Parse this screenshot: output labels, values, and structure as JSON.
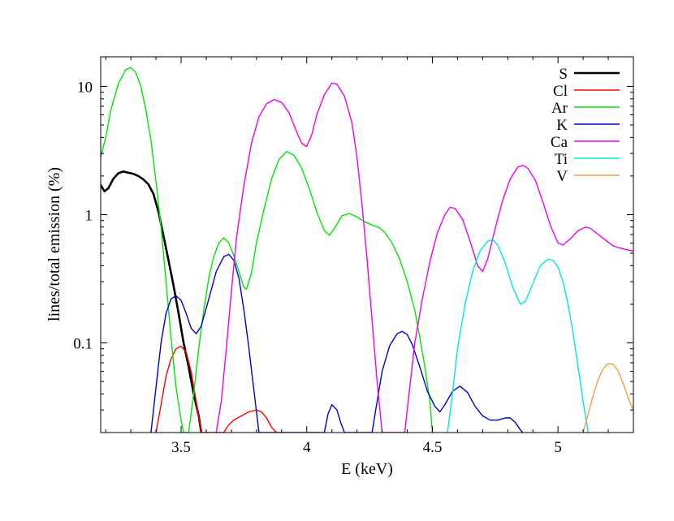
{
  "chart_data": {
    "type": "line",
    "xlabel": "E (keV)",
    "ylabel": "lines/total emission (%)",
    "xlim": [
      3.18,
      5.3
    ],
    "ylim": [
      0.02,
      17
    ],
    "yscale": "log",
    "x_ticks": [
      3.5,
      4,
      4.5,
      5
    ],
    "x_tick_labels": [
      "3.5",
      "4",
      "4.5",
      "5"
    ],
    "y_ticks": [
      0.1,
      1,
      10
    ],
    "y_tick_labels": [
      "0.1",
      "1",
      "10"
    ],
    "grid": false,
    "legend_position": "top-right",
    "series": [
      {
        "name": "S",
        "color": "#000000",
        "width": 2.6,
        "points": [
          [
            3.18,
            1.7
          ],
          [
            3.195,
            1.52
          ],
          [
            3.21,
            1.6
          ],
          [
            3.23,
            1.9
          ],
          [
            3.25,
            2.1
          ],
          [
            3.27,
            2.17
          ],
          [
            3.29,
            2.12
          ],
          [
            3.31,
            2.08
          ],
          [
            3.33,
            2.0
          ],
          [
            3.35,
            1.88
          ],
          [
            3.37,
            1.72
          ],
          [
            3.39,
            1.45
          ],
          [
            3.41,
            1.05
          ],
          [
            3.43,
            0.68
          ],
          [
            3.45,
            0.44
          ],
          [
            3.47,
            0.28
          ],
          [
            3.49,
            0.17
          ],
          [
            3.51,
            0.1
          ],
          [
            3.53,
            0.065
          ],
          [
            3.55,
            0.04
          ],
          [
            3.57,
            0.027
          ],
          [
            3.58,
            0.02
          ]
        ]
      },
      {
        "name": "Cl",
        "color": "#ff0000",
        "width": 1.4,
        "points": [
          [
            3.4,
            0.02
          ],
          [
            3.42,
            0.033
          ],
          [
            3.44,
            0.055
          ],
          [
            3.46,
            0.075
          ],
          [
            3.48,
            0.09
          ],
          [
            3.5,
            0.094
          ],
          [
            3.52,
            0.085
          ],
          [
            3.54,
            0.06
          ],
          [
            3.56,
            0.035
          ],
          [
            3.58,
            0.02
          ],
          [
            3.67,
            0.02
          ],
          [
            3.69,
            0.023
          ],
          [
            3.71,
            0.025
          ],
          [
            3.74,
            0.027
          ],
          [
            3.77,
            0.029
          ],
          [
            3.8,
            0.03
          ],
          [
            3.82,
            0.029
          ],
          [
            3.84,
            0.026
          ],
          [
            3.86,
            0.022
          ],
          [
            3.88,
            0.02
          ]
        ]
      },
      {
        "name": "Ar",
        "color": "#00e600",
        "width": 1.4,
        "points": [
          [
            3.18,
            2.8
          ],
          [
            3.2,
            4.0
          ],
          [
            3.22,
            6.5
          ],
          [
            3.25,
            10.5
          ],
          [
            3.28,
            13.5
          ],
          [
            3.3,
            14.0
          ],
          [
            3.32,
            12.8
          ],
          [
            3.34,
            10.0
          ],
          [
            3.36,
            6.5
          ],
          [
            3.38,
            3.8
          ],
          [
            3.4,
            1.8
          ],
          [
            3.42,
            0.8
          ],
          [
            3.44,
            0.3
          ],
          [
            3.46,
            0.11
          ],
          [
            3.48,
            0.045
          ],
          [
            3.5,
            0.025
          ],
          [
            3.51,
            0.02
          ],
          [
            3.53,
            0.02
          ],
          [
            3.55,
            0.04
          ],
          [
            3.57,
            0.09
          ],
          [
            3.59,
            0.18
          ],
          [
            3.61,
            0.32
          ],
          [
            3.63,
            0.47
          ],
          [
            3.65,
            0.6
          ],
          [
            3.67,
            0.66
          ],
          [
            3.69,
            0.6
          ],
          [
            3.71,
            0.48
          ],
          [
            3.73,
            0.36
          ],
          [
            3.75,
            0.27
          ],
          [
            3.76,
            0.262
          ],
          [
            3.78,
            0.35
          ],
          [
            3.8,
            0.6
          ],
          [
            3.83,
            1.1
          ],
          [
            3.86,
            1.9
          ],
          [
            3.89,
            2.7
          ],
          [
            3.92,
            3.1
          ],
          [
            3.95,
            2.9
          ],
          [
            3.98,
            2.3
          ],
          [
            4.01,
            1.6
          ],
          [
            4.04,
            1.05
          ],
          [
            4.07,
            0.75
          ],
          [
            4.09,
            0.69
          ],
          [
            4.11,
            0.78
          ],
          [
            4.14,
            0.98
          ],
          [
            4.17,
            1.02
          ],
          [
            4.2,
            0.96
          ],
          [
            4.23,
            0.88
          ],
          [
            4.26,
            0.83
          ],
          [
            4.29,
            0.79
          ],
          [
            4.31,
            0.73
          ],
          [
            4.34,
            0.6
          ],
          [
            4.37,
            0.45
          ],
          [
            4.4,
            0.3
          ],
          [
            4.43,
            0.18
          ],
          [
            4.45,
            0.11
          ],
          [
            4.47,
            0.065
          ],
          [
            4.49,
            0.035
          ],
          [
            4.5,
            0.02
          ]
        ]
      },
      {
        "name": "K",
        "color": "#0000cc",
        "width": 1.4,
        "points": [
          [
            3.38,
            0.02
          ],
          [
            3.4,
            0.045
          ],
          [
            3.42,
            0.1
          ],
          [
            3.44,
            0.17
          ],
          [
            3.46,
            0.22
          ],
          [
            3.48,
            0.233
          ],
          [
            3.5,
            0.215
          ],
          [
            3.52,
            0.17
          ],
          [
            3.54,
            0.13
          ],
          [
            3.56,
            0.118
          ],
          [
            3.58,
            0.135
          ],
          [
            3.61,
            0.22
          ],
          [
            3.64,
            0.36
          ],
          [
            3.67,
            0.47
          ],
          [
            3.69,
            0.49
          ],
          [
            3.71,
            0.44
          ],
          [
            3.73,
            0.32
          ],
          [
            3.75,
            0.18
          ],
          [
            3.77,
            0.09
          ],
          [
            3.79,
            0.042
          ],
          [
            3.81,
            0.02
          ],
          [
            4.07,
            0.02
          ],
          [
            4.085,
            0.028
          ],
          [
            4.1,
            0.033
          ],
          [
            4.12,
            0.03
          ],
          [
            4.135,
            0.024
          ],
          [
            4.15,
            0.02
          ],
          [
            4.26,
            0.02
          ],
          [
            4.28,
            0.035
          ],
          [
            4.3,
            0.06
          ],
          [
            4.33,
            0.095
          ],
          [
            4.36,
            0.118
          ],
          [
            4.38,
            0.123
          ],
          [
            4.4,
            0.116
          ],
          [
            4.42,
            0.097
          ],
          [
            4.45,
            0.065
          ],
          [
            4.48,
            0.042
          ],
          [
            4.51,
            0.032
          ],
          [
            4.53,
            0.029
          ],
          [
            4.55,
            0.033
          ],
          [
            4.58,
            0.042
          ],
          [
            4.61,
            0.046
          ],
          [
            4.64,
            0.041
          ],
          [
            4.67,
            0.032
          ],
          [
            4.7,
            0.027
          ],
          [
            4.73,
            0.025
          ],
          [
            4.76,
            0.025
          ],
          [
            4.79,
            0.026
          ],
          [
            4.81,
            0.026
          ],
          [
            4.83,
            0.024
          ],
          [
            4.85,
            0.021
          ],
          [
            4.86,
            0.02
          ]
        ]
      },
      {
        "name": "Ca",
        "color": "#ee00ee",
        "width": 1.4,
        "points": [
          [
            3.64,
            0.02
          ],
          [
            3.66,
            0.035
          ],
          [
            3.68,
            0.09
          ],
          [
            3.7,
            0.25
          ],
          [
            3.72,
            0.65
          ],
          [
            3.75,
            1.7
          ],
          [
            3.78,
            3.6
          ],
          [
            3.81,
            5.8
          ],
          [
            3.84,
            7.3
          ],
          [
            3.87,
            7.9
          ],
          [
            3.9,
            7.5
          ],
          [
            3.93,
            6.2
          ],
          [
            3.96,
            4.4
          ],
          [
            3.98,
            3.6
          ],
          [
            4.0,
            3.4
          ],
          [
            4.02,
            4.2
          ],
          [
            4.04,
            6.0
          ],
          [
            4.07,
            8.6
          ],
          [
            4.1,
            10.6
          ],
          [
            4.12,
            10.4
          ],
          [
            4.15,
            8.4
          ],
          [
            4.18,
            5.2
          ],
          [
            4.2,
            2.8
          ],
          [
            4.22,
            1.2
          ],
          [
            4.24,
            0.45
          ],
          [
            4.26,
            0.15
          ],
          [
            4.28,
            0.05
          ],
          [
            4.3,
            0.02
          ],
          [
            4.39,
            0.02
          ],
          [
            4.41,
            0.045
          ],
          [
            4.43,
            0.1
          ],
          [
            4.46,
            0.22
          ],
          [
            4.49,
            0.43
          ],
          [
            4.52,
            0.72
          ],
          [
            4.55,
            1.0
          ],
          [
            4.57,
            1.14
          ],
          [
            4.59,
            1.12
          ],
          [
            4.62,
            0.92
          ],
          [
            4.65,
            0.62
          ],
          [
            4.68,
            0.4
          ],
          [
            4.7,
            0.36
          ],
          [
            4.72,
            0.45
          ],
          [
            4.75,
            0.78
          ],
          [
            4.78,
            1.3
          ],
          [
            4.81,
            1.9
          ],
          [
            4.84,
            2.35
          ],
          [
            4.86,
            2.42
          ],
          [
            4.88,
            2.3
          ],
          [
            4.91,
            1.85
          ],
          [
            4.94,
            1.25
          ],
          [
            4.97,
            0.82
          ],
          [
            5.0,
            0.6
          ],
          [
            5.02,
            0.58
          ],
          [
            5.05,
            0.65
          ],
          [
            5.08,
            0.75
          ],
          [
            5.11,
            0.8
          ],
          [
            5.13,
            0.78
          ],
          [
            5.16,
            0.7
          ],
          [
            5.19,
            0.63
          ],
          [
            5.22,
            0.57
          ],
          [
            5.26,
            0.54
          ],
          [
            5.3,
            0.52
          ]
        ]
      },
      {
        "name": "Ti",
        "color": "#00e6e6",
        "width": 1.4,
        "points": [
          [
            4.56,
            0.02
          ],
          [
            4.58,
            0.04
          ],
          [
            4.6,
            0.09
          ],
          [
            4.63,
            0.2
          ],
          [
            4.66,
            0.36
          ],
          [
            4.69,
            0.52
          ],
          [
            4.72,
            0.62
          ],
          [
            4.74,
            0.64
          ],
          [
            4.76,
            0.58
          ],
          [
            4.79,
            0.42
          ],
          [
            4.82,
            0.27
          ],
          [
            4.85,
            0.2
          ],
          [
            4.87,
            0.21
          ],
          [
            4.9,
            0.29
          ],
          [
            4.93,
            0.4
          ],
          [
            4.96,
            0.45
          ],
          [
            4.98,
            0.44
          ],
          [
            5.0,
            0.39
          ],
          [
            5.02,
            0.3
          ],
          [
            5.04,
            0.2
          ],
          [
            5.06,
            0.12
          ],
          [
            5.08,
            0.065
          ],
          [
            5.1,
            0.035
          ],
          [
            5.12,
            0.02
          ]
        ]
      },
      {
        "name": "V",
        "color": "#f0a040",
        "width": 1.4,
        "points": [
          [
            5.1,
            0.02
          ],
          [
            5.12,
            0.028
          ],
          [
            5.14,
            0.039
          ],
          [
            5.16,
            0.052
          ],
          [
            5.18,
            0.063
          ],
          [
            5.2,
            0.069
          ],
          [
            5.22,
            0.068
          ],
          [
            5.24,
            0.06
          ],
          [
            5.26,
            0.048
          ],
          [
            5.28,
            0.037
          ],
          [
            5.3,
            0.03
          ]
        ]
      }
    ]
  }
}
